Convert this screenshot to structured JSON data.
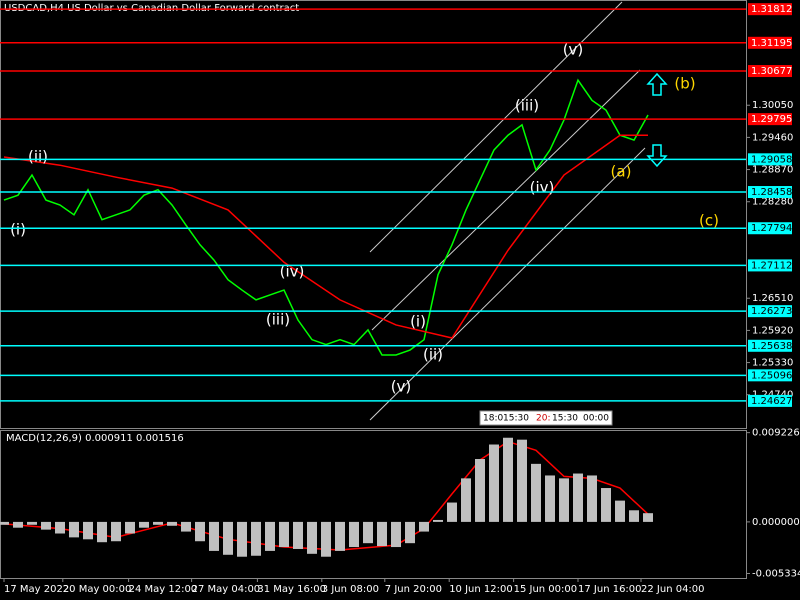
{
  "chart_data": [
    {
      "type": "line",
      "title": "USDCAD,H4  US Dollar vs Canadian Dollar Forward contract",
      "xlim": [
        0,
        53
      ],
      "ylim": [
        1.2413,
        1.3198
      ],
      "series": [
        {
          "color": "#00ff00",
          "values": [
            1.2831,
            1.284,
            1.2877,
            1.2831,
            1.2822,
            1.2804,
            1.285,
            1.2795,
            1.2804,
            1.2813,
            1.284,
            1.285,
            1.2822,
            1.2785,
            1.2749,
            1.2721,
            1.2685,
            1.2666,
            1.2648,
            1.2657,
            1.2666,
            1.2611,
            1.2575,
            1.2566,
            1.2575,
            1.2566,
            1.2593,
            1.2547,
            1.2547,
            1.2556,
            1.2575,
            1.2694,
            1.2749,
            1.2813,
            1.2868,
            1.2923,
            1.295,
            1.2969,
            1.2886,
            1.2923,
            1.2978,
            1.3051,
            1.3014,
            1.2996,
            1.295,
            1.2941,
            1.2987
          ]
        },
        {
          "color": "#ff0000",
          "x": [
            0,
            4,
            8,
            12,
            16,
            20,
            24,
            28,
            32,
            36,
            40,
            44,
            46
          ],
          "values": [
            1.291,
            1.2895,
            1.2873,
            1.2853,
            1.2813,
            1.2717,
            1.2648,
            1.2602,
            1.2578,
            1.2739,
            1.2877,
            1.295,
            1.295
          ]
        }
      ],
      "yticks": [
        {
          "value": 1.3005,
          "label": "1.30050"
        },
        {
          "value": 1.2946,
          "label": "1.29460"
        },
        {
          "value": 1.2887,
          "label": "1.28870"
        },
        {
          "value": 1.2828,
          "label": "1.28280"
        },
        {
          "value": 1.2651,
          "label": "1.26510"
        },
        {
          "value": 1.2592,
          "label": "1.25920"
        },
        {
          "value": 1.2533,
          "label": "1.25330"
        },
        {
          "value": 1.2474,
          "label": "1.24740"
        }
      ],
      "levels": [
        {
          "value": 1.31812,
          "color": "#ff0000"
        },
        {
          "value": 1.31195,
          "color": "#ff0000"
        },
        {
          "value": 1.30677,
          "color": "#ff0000"
        },
        {
          "value": 1.29795,
          "color": "#ff0000"
        },
        {
          "value": 1.29058,
          "color": "#00ffff"
        },
        {
          "value": 1.28458,
          "color": "#00ffff"
        },
        {
          "value": 1.27794,
          "color": "#00ffff"
        },
        {
          "value": 1.27112,
          "color": "#00ffff"
        },
        {
          "value": 1.26273,
          "color": "#00ffff"
        },
        {
          "value": 1.25638,
          "color": "#00ffff"
        },
        {
          "value": 1.25096,
          "color": "#00ffff"
        },
        {
          "value": 1.24627,
          "color": "#00ffff"
        }
      ],
      "annotations": [
        "(v)",
        "(iii)",
        "(iv)",
        "(ii)",
        "(i)",
        "(iv)",
        "(iii)",
        "(i)",
        "(ii)",
        "(v)",
        "(a)",
        "(b)",
        "(c)"
      ]
    },
    {
      "type": "bar",
      "title": "MACD(12,26,9) 0.000911 0.001516",
      "xlim": [
        0,
        53
      ],
      "ylim": [
        -0.0058,
        0.0095
      ],
      "series": [
        {
          "color": "#c0c0c0",
          "values": [
            -0.0003,
            -0.0006,
            -0.0003,
            -0.0008,
            -0.0012,
            -0.0016,
            -0.0018,
            -0.0021,
            -0.002,
            -0.0012,
            -0.0006,
            -0.0003,
            -0.0004,
            -0.001,
            -0.002,
            -0.003,
            -0.0034,
            -0.0036,
            -0.0035,
            -0.003,
            -0.0026,
            -0.0028,
            -0.0033,
            -0.0036,
            -0.003,
            -0.0026,
            -0.0022,
            -0.0025,
            -0.0026,
            -0.0022,
            -0.001,
            0.0002,
            0.002,
            0.0045,
            0.0065,
            0.008,
            0.0087,
            0.0085,
            0.006,
            0.0048,
            0.0045,
            0.005,
            0.0048,
            0.0035,
            0.0022,
            0.0012,
            0.0009
          ]
        },
        {
          "color": "#ff0000",
          "x": [
            0,
            4,
            8,
            12,
            16,
            20,
            24,
            28,
            30,
            32,
            34,
            36,
            38,
            40,
            42,
            44,
            46
          ],
          "values": [
            -0.0002,
            -0.0007,
            -0.0016,
            -0.0001,
            -0.0018,
            -0.0026,
            -0.0029,
            -0.0024,
            -0.0007,
            0.0029,
            0.0064,
            0.0083,
            0.0074,
            0.0047,
            0.0045,
            0.0035,
            0.0008
          ]
        }
      ],
      "yticks": [
        0.009226,
        {
          "value": 0,
          "label": "0.000000"
        },
        -0.005334
      ],
      "xticks": [
        {
          "value": 0,
          "label": "17 May 2022"
        },
        {
          "value": 4.2,
          "label": "20 May 00:00"
        },
        {
          "value": 8.9,
          "label": "24 May 12:00"
        },
        {
          "value": 13.4,
          "label": "27 May 04:00"
        },
        {
          "value": 18.1,
          "label": "31 May 16:00"
        },
        {
          "value": 22.7,
          "label": "3 Jun 08:00"
        },
        {
          "value": 27.2,
          "label": "7 Jun 20:00"
        },
        {
          "value": 31.8,
          "label": "10 Jun 12:00"
        },
        {
          "value": 36.4,
          "label": "15 Jun 00:00"
        },
        {
          "value": 41,
          "label": "17 Jun 16:00"
        },
        {
          "value": 45.5,
          "label": "22 Jun 04:00"
        }
      ]
    }
  ],
  "time_boxes": [
    "18:0",
    "15:30",
    "20:",
    "15:30",
    "00:00"
  ]
}
